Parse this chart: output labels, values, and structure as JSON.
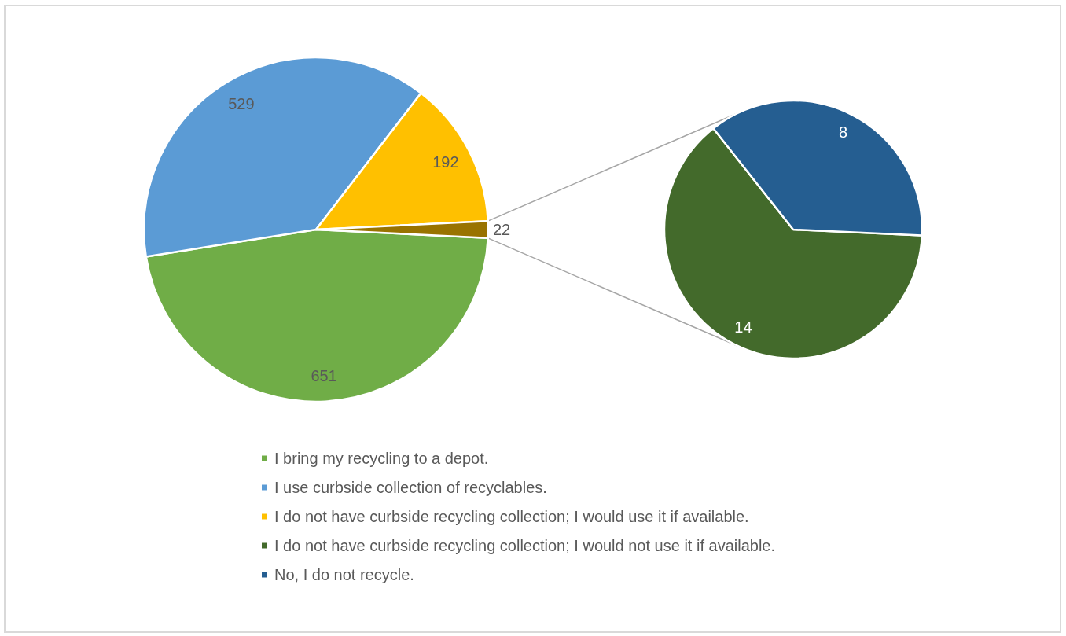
{
  "chart_data": [
    {
      "type": "pie",
      "categories": [
        "I bring my recycling to a depot.",
        "I use curbside collection of recyclables.",
        "I do not have curbside recycling collection; I would use it if available.",
        null
      ],
      "values": [
        651,
        529,
        192,
        22
      ],
      "colors": [
        "#70ad47",
        "#5b9bd5",
        "#ffc000",
        "#997300"
      ],
      "data_labels": true,
      "legend": "bottom"
    },
    {
      "type": "pie",
      "categories": [
        "I do not have curbside recycling collection; I would not use it if available.",
        "No, I do not recycle."
      ],
      "values": [
        14,
        8
      ],
      "colors": [
        "#436a2b",
        "#255e91"
      ],
      "data_labels": true,
      "legend": "bottom"
    }
  ]
}
